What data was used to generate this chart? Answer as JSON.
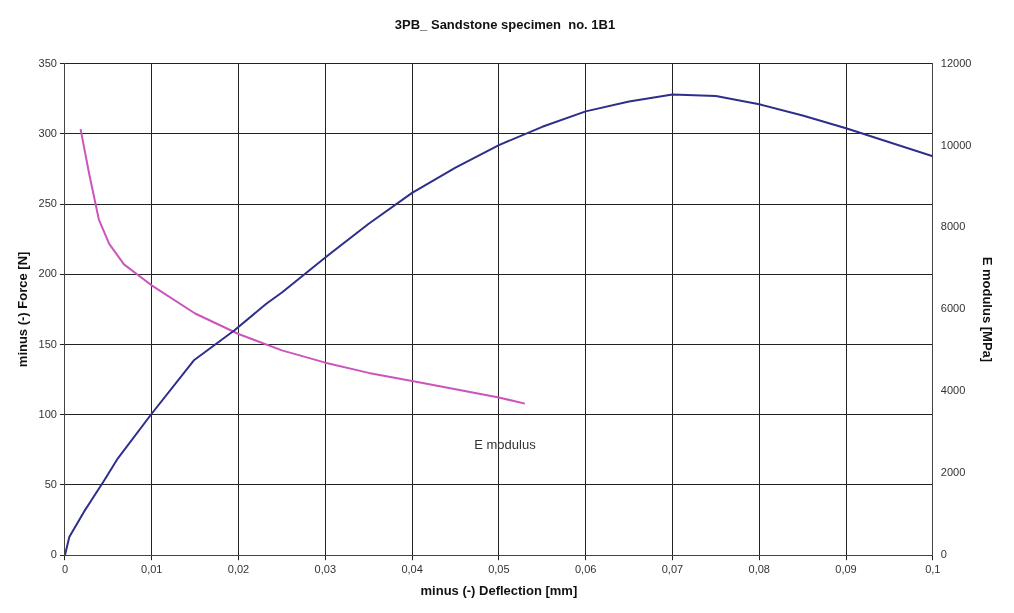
{
  "chart_data": {
    "type": "line",
    "title": "3PB_ Sandstone specimen  no. 1B1",
    "xlabel": "minus (-) Deflection [mm]",
    "ylabel": "minus (-) Force [N]",
    "y2label": "E modulus [MPa]",
    "series": [
      {
        "color": "#2e2e8c",
        "x": [
          0,
          0.0005,
          0.0022,
          0.0045,
          0.0061,
          0.0099,
          0.0149,
          0.0195,
          0.0232,
          0.025,
          0.03,
          0.035,
          0.04,
          0.045,
          0.05,
          0.055,
          0.06,
          0.065,
          0.07,
          0.075,
          0.08,
          0.085,
          0.09,
          0.1
        ],
        "values": [
          0,
          13,
          31,
          53,
          69,
          100,
          139,
          160,
          179,
          187,
          212,
          236,
          258,
          276,
          292,
          305,
          316,
          323,
          328,
          327,
          321,
          313,
          304,
          284
        ]
      },
      {
        "name": "E modulus",
        "axis": "y2",
        "color": "#cc55bb",
        "x": [
          0.0018,
          0.0028,
          0.0039,
          0.0051,
          0.0068,
          0.0099,
          0.015,
          0.02,
          0.025,
          0.03,
          0.035,
          0.04,
          0.045,
          0.05,
          0.053
        ],
        "values": [
          10400,
          9300,
          8200,
          7600,
          7100,
          6600,
          5900,
          5400,
          5000,
          4700,
          4450,
          4250,
          4050,
          3850,
          3700
        ]
      }
    ],
    "xlim": [
      0,
      0.1
    ],
    "xticks": [
      0,
      {
        "value": 0.01,
        "label": "0,01"
      },
      {
        "value": 0.02,
        "label": "0,02"
      },
      {
        "value": 0.03,
        "label": "0,03"
      },
      {
        "value": 0.04,
        "label": "0,04"
      },
      {
        "value": 0.05,
        "label": "0,05"
      },
      {
        "value": 0.06,
        "label": "0,06"
      },
      {
        "value": 0.07,
        "label": "0,07"
      },
      {
        "value": 0.08,
        "label": "0,08"
      },
      {
        "value": 0.09,
        "label": "0,09"
      },
      {
        "value": 0.1,
        "label": "0,1"
      }
    ],
    "ylim": [
      0,
      350
    ],
    "yticks": [
      0,
      50,
      100,
      150,
      200,
      250,
      300,
      350
    ],
    "y2lim": [
      0,
      12000
    ],
    "y2ticks": [
      0,
      2000,
      4000,
      6000,
      8000,
      10000,
      12000
    ],
    "grid": true,
    "legend": false,
    "marker": "none",
    "line_style": "solid"
  }
}
